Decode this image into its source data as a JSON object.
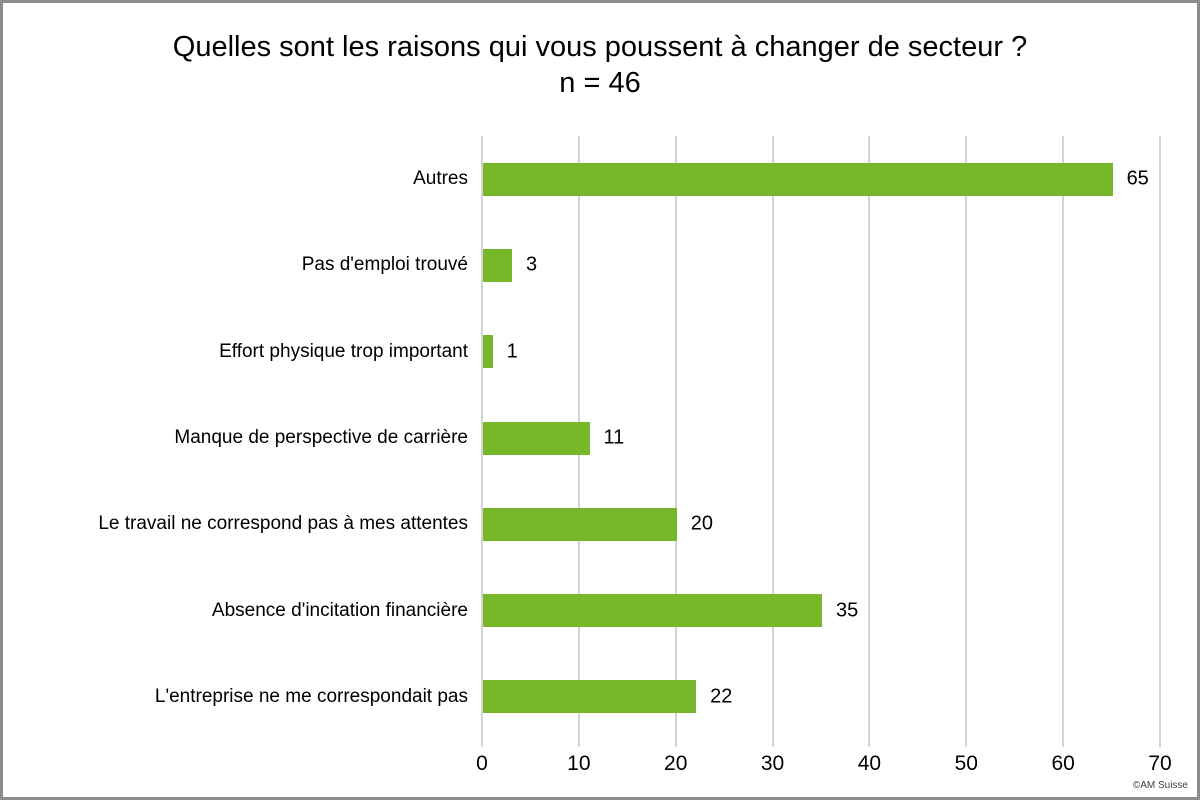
{
  "chart_data": {
    "type": "bar",
    "orientation": "horizontal",
    "title": "Quelles sont les raisons qui vous poussent à changer de secteur ? n = 46",
    "categories": [
      "Autres",
      "Pas d'emploi trouvé",
      "Effort physique trop important",
      "Manque de perspective de carrière",
      "Le travail ne correspond pas à mes attentes",
      "Absence d'incitation financière",
      "L'entreprise ne me correspondait pas"
    ],
    "values": [
      65,
      3,
      1,
      11,
      20,
      35,
      22
    ],
    "data_labels": [
      65,
      3,
      1,
      11,
      20,
      35,
      22
    ],
    "xlabel": "",
    "ylabel": "",
    "xlim": [
      0,
      70
    ],
    "x_ticks": [
      0,
      10,
      20,
      30,
      40,
      50,
      60,
      70
    ],
    "grid": true,
    "legend": false,
    "bar_color": "#76b82a",
    "gridline_color": "#d4d4d4"
  },
  "footer": {
    "credit": "©AM Suisse"
  }
}
